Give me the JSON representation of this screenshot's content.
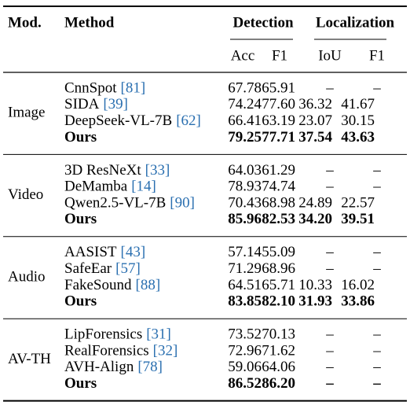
{
  "header": {
    "mod": "Mod.",
    "method": "Method",
    "detection": "Detection",
    "localization": "Localization",
    "subheaders": [
      "Acc",
      "F1",
      "IoU",
      "F1"
    ]
  },
  "groups": [
    {
      "mod": "Image",
      "rows": [
        {
          "method": "CnnSpot",
          "cite": "[81]",
          "values": [
            "67.78",
            "65.91",
            "–",
            "–"
          ]
        },
        {
          "method": "SIDA",
          "cite": "[39]",
          "values": [
            "74.24",
            "77.60",
            "36.32",
            "41.67"
          ]
        },
        {
          "method": "DeepSeek-VL-7B",
          "cite": "[62]",
          "values": [
            "66.41",
            "63.19",
            "23.07",
            "30.15"
          ]
        },
        {
          "method": "Ours",
          "bold": true,
          "values": [
            "79.25",
            "77.71",
            "37.54",
            "43.63"
          ]
        }
      ]
    },
    {
      "mod": "Video",
      "rows": [
        {
          "method": "3D ResNeXt",
          "cite": "[33]",
          "values": [
            "64.03",
            "61.29",
            "–",
            "–"
          ]
        },
        {
          "method": "DeMamba",
          "cite": "[14]",
          "values": [
            "78.93",
            "74.74",
            "–",
            "–"
          ]
        },
        {
          "method": "Qwen2.5-VL-7B",
          "cite": "[90]",
          "values": [
            "70.43",
            "68.98",
            "24.89",
            "22.57"
          ]
        },
        {
          "method": "Ours",
          "bold": true,
          "values": [
            "85.96",
            "82.53",
            "34.20",
            "39.51"
          ]
        }
      ]
    },
    {
      "mod": "Audio",
      "rows": [
        {
          "method": "AASIST",
          "cite": "[43]",
          "values": [
            "57.14",
            "55.09",
            "–",
            "–"
          ]
        },
        {
          "method": "SafeEar",
          "cite": "[57]",
          "values": [
            "71.29",
            "68.96",
            "–",
            "–"
          ]
        },
        {
          "method": "FakeSound",
          "cite": "[88]",
          "values": [
            "64.51",
            "65.71",
            "10.33",
            "16.02"
          ]
        },
        {
          "method": "Ours",
          "bold": true,
          "values": [
            "83.85",
            "82.10",
            "31.93",
            "33.86"
          ]
        }
      ]
    },
    {
      "mod": "AV-TH",
      "rows": [
        {
          "method": "LipForensics",
          "cite": "[31]",
          "values": [
            "73.52",
            "70.13",
            "–",
            "–"
          ]
        },
        {
          "method": "RealForensics",
          "cite": "[32]",
          "values": [
            "72.96",
            "71.62",
            "–",
            "–"
          ]
        },
        {
          "method": "AVH-Align",
          "cite": "[78]",
          "values": [
            "59.06",
            "64.06",
            "–",
            "–"
          ]
        },
        {
          "method": "Ours",
          "bold": true,
          "values": [
            "86.52",
            "86.20",
            "–",
            "–"
          ]
        }
      ]
    }
  ]
}
